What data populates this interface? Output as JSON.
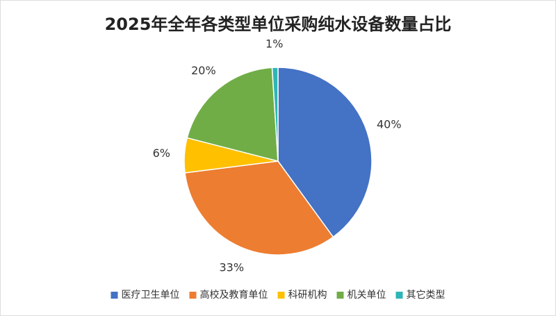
{
  "chart_data": {
    "type": "pie",
    "title": "2025年全年各类型单位采购纯水设备数量占比",
    "categories": [
      "医疗卫生单位",
      "高校及教育单位",
      "科研机构",
      "机关单位",
      "其它类型"
    ],
    "values": [
      40,
      33,
      6,
      20,
      1
    ],
    "value_labels": [
      "40%",
      "33%",
      "6%",
      "20%",
      "1%"
    ],
    "colors": [
      "#4472c4",
      "#ed7d31",
      "#ffc000",
      "#70ad47",
      "#2eb5b5"
    ],
    "legend": "bottom"
  }
}
